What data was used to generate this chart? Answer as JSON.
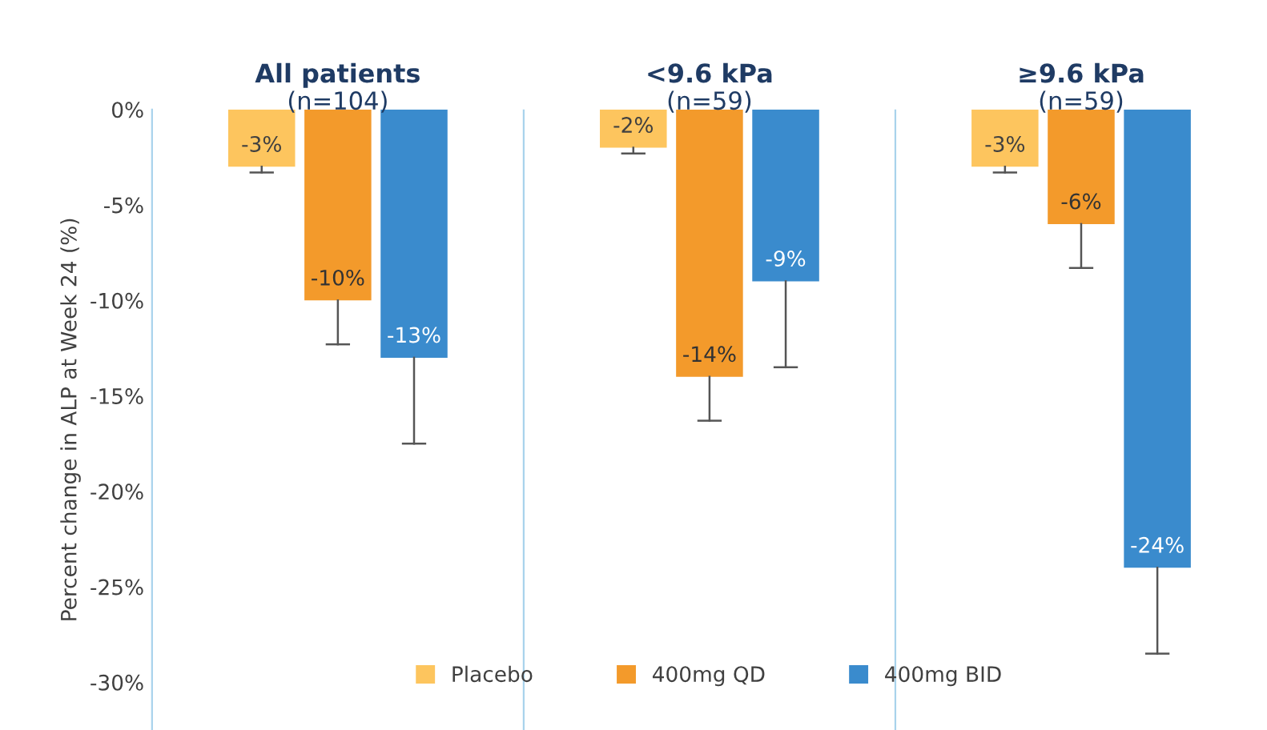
{
  "chart_data": {
    "type": "bar",
    "ylabel": "Percent change in ALP at Week 24 (%)",
    "categories": [
      "All patients\n(n=104)",
      "<9.6 kPa\n(n=59)",
      "≥9.6 kPa\n(n=59)"
    ],
    "series": [
      {
        "name": "Placebo",
        "color": "#fdc55e",
        "values": [
          -3,
          -2,
          -3
        ],
        "value_labels": [
          "-3%",
          "-2%",
          "-3%"
        ],
        "errors": [
          [
            -3.3,
            -3
          ],
          [
            -2.3,
            -2
          ],
          [
            -3.3,
            -3
          ]
        ]
      },
      {
        "name": "400mg QD",
        "color": "#f39a2b",
        "values": [
          -10,
          -14,
          -6
        ],
        "value_labels": [
          "-10%",
          "-14%",
          "-6%"
        ],
        "errors": [
          [
            -12.3,
            -10
          ],
          [
            -16.3,
            -14
          ],
          [
            -8.3,
            -6
          ]
        ]
      },
      {
        "name": "400mg BID",
        "color": "#3a8bcd",
        "values": [
          -13,
          -9,
          -24
        ],
        "value_labels": [
          "-13%",
          "-9%",
          "-24%"
        ],
        "errors": [
          [
            -17.5,
            -13
          ],
          [
            -13.5,
            -9
          ],
          [
            -28.5,
            -24
          ]
        ]
      }
    ],
    "ylim": [
      -32.5,
      0
    ],
    "yticks": [
      {
        "value": 0,
        "label": "0%"
      },
      {
        "value": -5,
        "label": "-5%"
      },
      {
        "value": -10,
        "label": "-10%"
      },
      {
        "value": -15,
        "label": "-15%"
      },
      {
        "value": -20,
        "label": "-20%"
      },
      {
        "value": -25,
        "label": "-25%"
      },
      {
        "value": -30,
        "label": "-30%"
      }
    ],
    "grid": "x",
    "legend": "bottom"
  }
}
